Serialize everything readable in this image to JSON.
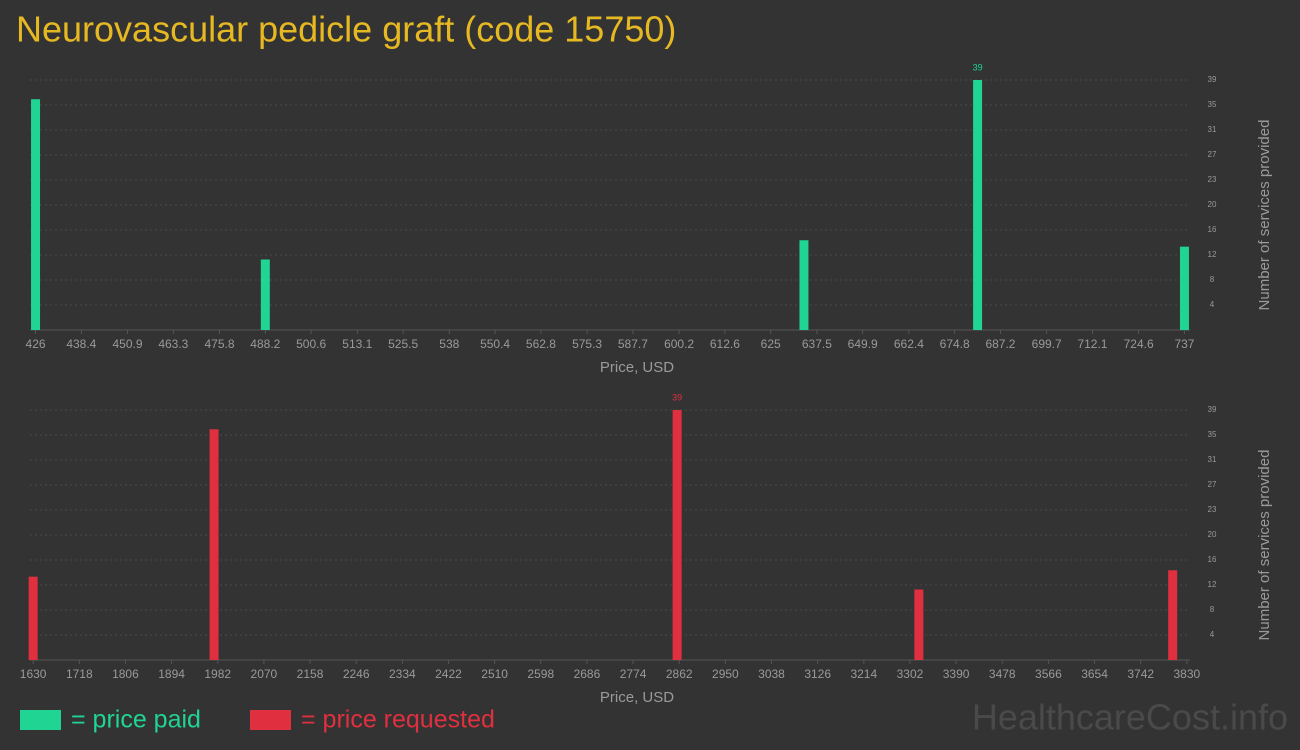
{
  "header": {
    "title": "Neurovascular pedicle graft (code 15750)",
    "watermark": "HealthcareCost.info"
  },
  "chart_data": [
    {
      "type": "bar",
      "x_label": "Price, USD",
      "y_label": "Number of services provided",
      "x": [
        426,
        488.2,
        634,
        681,
        737
      ],
      "series": [
        {
          "name": "= price paid",
          "color": "#20d494",
          "values": [
            36,
            11,
            14,
            39,
            13
          ]
        }
      ],
      "xlim": [
        424.5,
        738.5
      ],
      "xticks": [
        426,
        438.4,
        450.9,
        463.3,
        475.8,
        488.2,
        500.6,
        513.1,
        525.5,
        538,
        550.4,
        562.8,
        575.3,
        587.7,
        600.2,
        612.6,
        625,
        637.5,
        649.9,
        662.4,
        674.8,
        687.2,
        699.7,
        712.1,
        724.6,
        737
      ],
      "ylim": [
        0,
        39
      ],
      "yticks": [
        {
          "value": 3.9,
          "label": "4"
        },
        {
          "value": 7.8,
          "label": "8"
        },
        {
          "value": 11.7,
          "label": "12"
        },
        {
          "value": 15.6,
          "label": "16"
        },
        {
          "value": 19.5,
          "label": "20"
        },
        {
          "value": 23.4,
          "label": "23"
        },
        {
          "value": 27.3,
          "label": "27"
        },
        {
          "value": 31.2,
          "label": "31"
        },
        {
          "value": 35.1,
          "label": "35"
        },
        39
      ],
      "grid": true
    },
    {
      "type": "bar",
      "x_label": "Price, USD",
      "y_label": "Number of services provided",
      "x": [
        1630,
        1975,
        2858,
        3319,
        3803
      ],
      "series": [
        {
          "name": "= price requested",
          "color": "#e0303f",
          "values": [
            13,
            36,
            39,
            11,
            14
          ]
        }
      ],
      "xlim": [
        1624,
        3836
      ],
      "xticks": [
        1630,
        1718,
        1806,
        1894,
        1982,
        2070,
        2158,
        2246,
        2334,
        2422,
        2510,
        2598,
        2686,
        2774,
        2862,
        2950,
        3038,
        3126,
        3214,
        3302,
        3390,
        3478,
        3566,
        3654,
        3742,
        3830
      ],
      "ylim": [
        0,
        39
      ],
      "yticks": [
        {
          "value": 3.9,
          "label": "4"
        },
        {
          "value": 7.8,
          "label": "8"
        },
        {
          "value": 11.7,
          "label": "12"
        },
        {
          "value": 15.6,
          "label": "16"
        },
        {
          "value": 19.5,
          "label": "20"
        },
        {
          "value": 23.4,
          "label": "23"
        },
        {
          "value": 27.3,
          "label": "27"
        },
        {
          "value": 31.2,
          "label": "31"
        },
        {
          "value": 35.1,
          "label": "35"
        },
        39
      ],
      "grid": true
    }
  ]
}
